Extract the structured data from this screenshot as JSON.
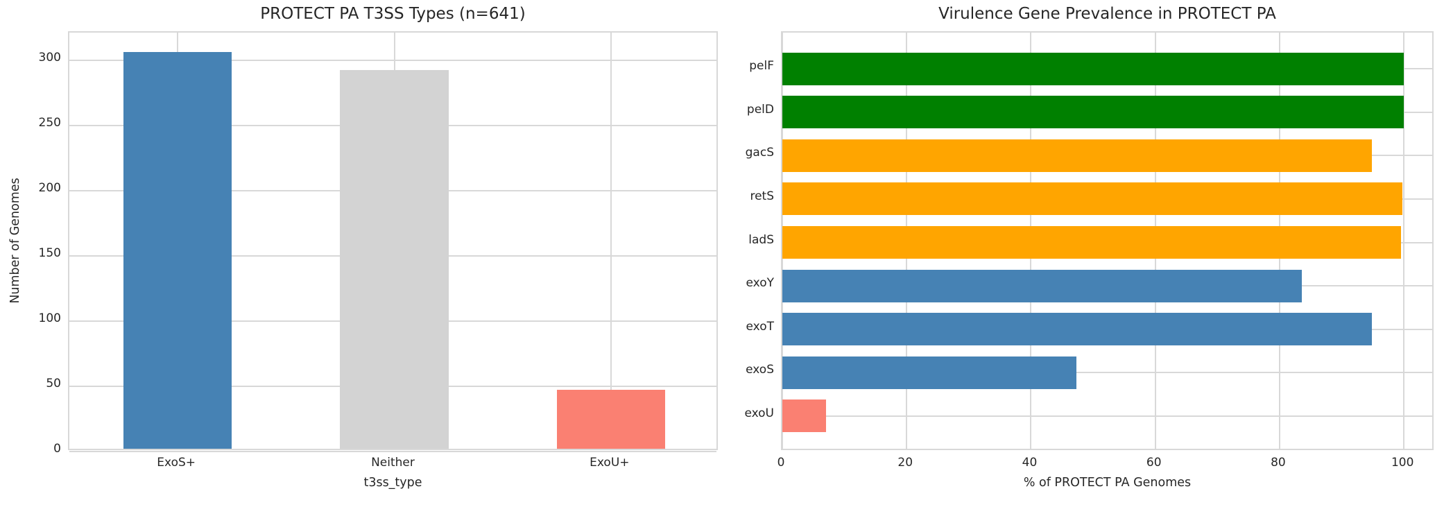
{
  "figure": {
    "background": "#ffffff",
    "grid_color": "#d8d8d8",
    "text_color": "#262626"
  },
  "chart_data": [
    {
      "type": "bar",
      "title": "PROTECT PA T3SS Types (n=641)",
      "xlabel": "t3ss_type",
      "ylabel": "Number of Genomes",
      "categories": [
        "ExoS+",
        "Neither",
        "ExoU+"
      ],
      "values": [
        304,
        290,
        45
      ],
      "bar_colors": [
        "#4682b4",
        "#d3d3d3",
        "#fa8072"
      ],
      "yticks": [
        0,
        50,
        100,
        150,
        200,
        250,
        300
      ],
      "ylim": [
        0,
        321
      ],
      "grid": "both",
      "bar_width_fraction": 0.5
    },
    {
      "type": "bar-horizontal",
      "title": "Virulence Gene Prevalence in PROTECT PA",
      "xlabel": "% of PROTECT PA Genomes",
      "ylabel": "",
      "categories": [
        "pelF",
        "pelD",
        "gacS",
        "retS",
        "ladS",
        "exoY",
        "exoT",
        "exoS",
        "exoU"
      ],
      "category_order": "top-to-bottom",
      "values": [
        100,
        100,
        94.9,
        99.8,
        99.5,
        83.6,
        94.9,
        47.3,
        7.0
      ],
      "bar_colors": [
        "#008000",
        "#008000",
        "#ffa500",
        "#ffa500",
        "#ffa500",
        "#4682b4",
        "#4682b4",
        "#4682b4",
        "#fa8072"
      ],
      "xticks": [
        0,
        20,
        40,
        60,
        80,
        100
      ],
      "xlim": [
        0,
        105
      ],
      "grid": "both",
      "bar_height_fraction": 0.75
    }
  ]
}
